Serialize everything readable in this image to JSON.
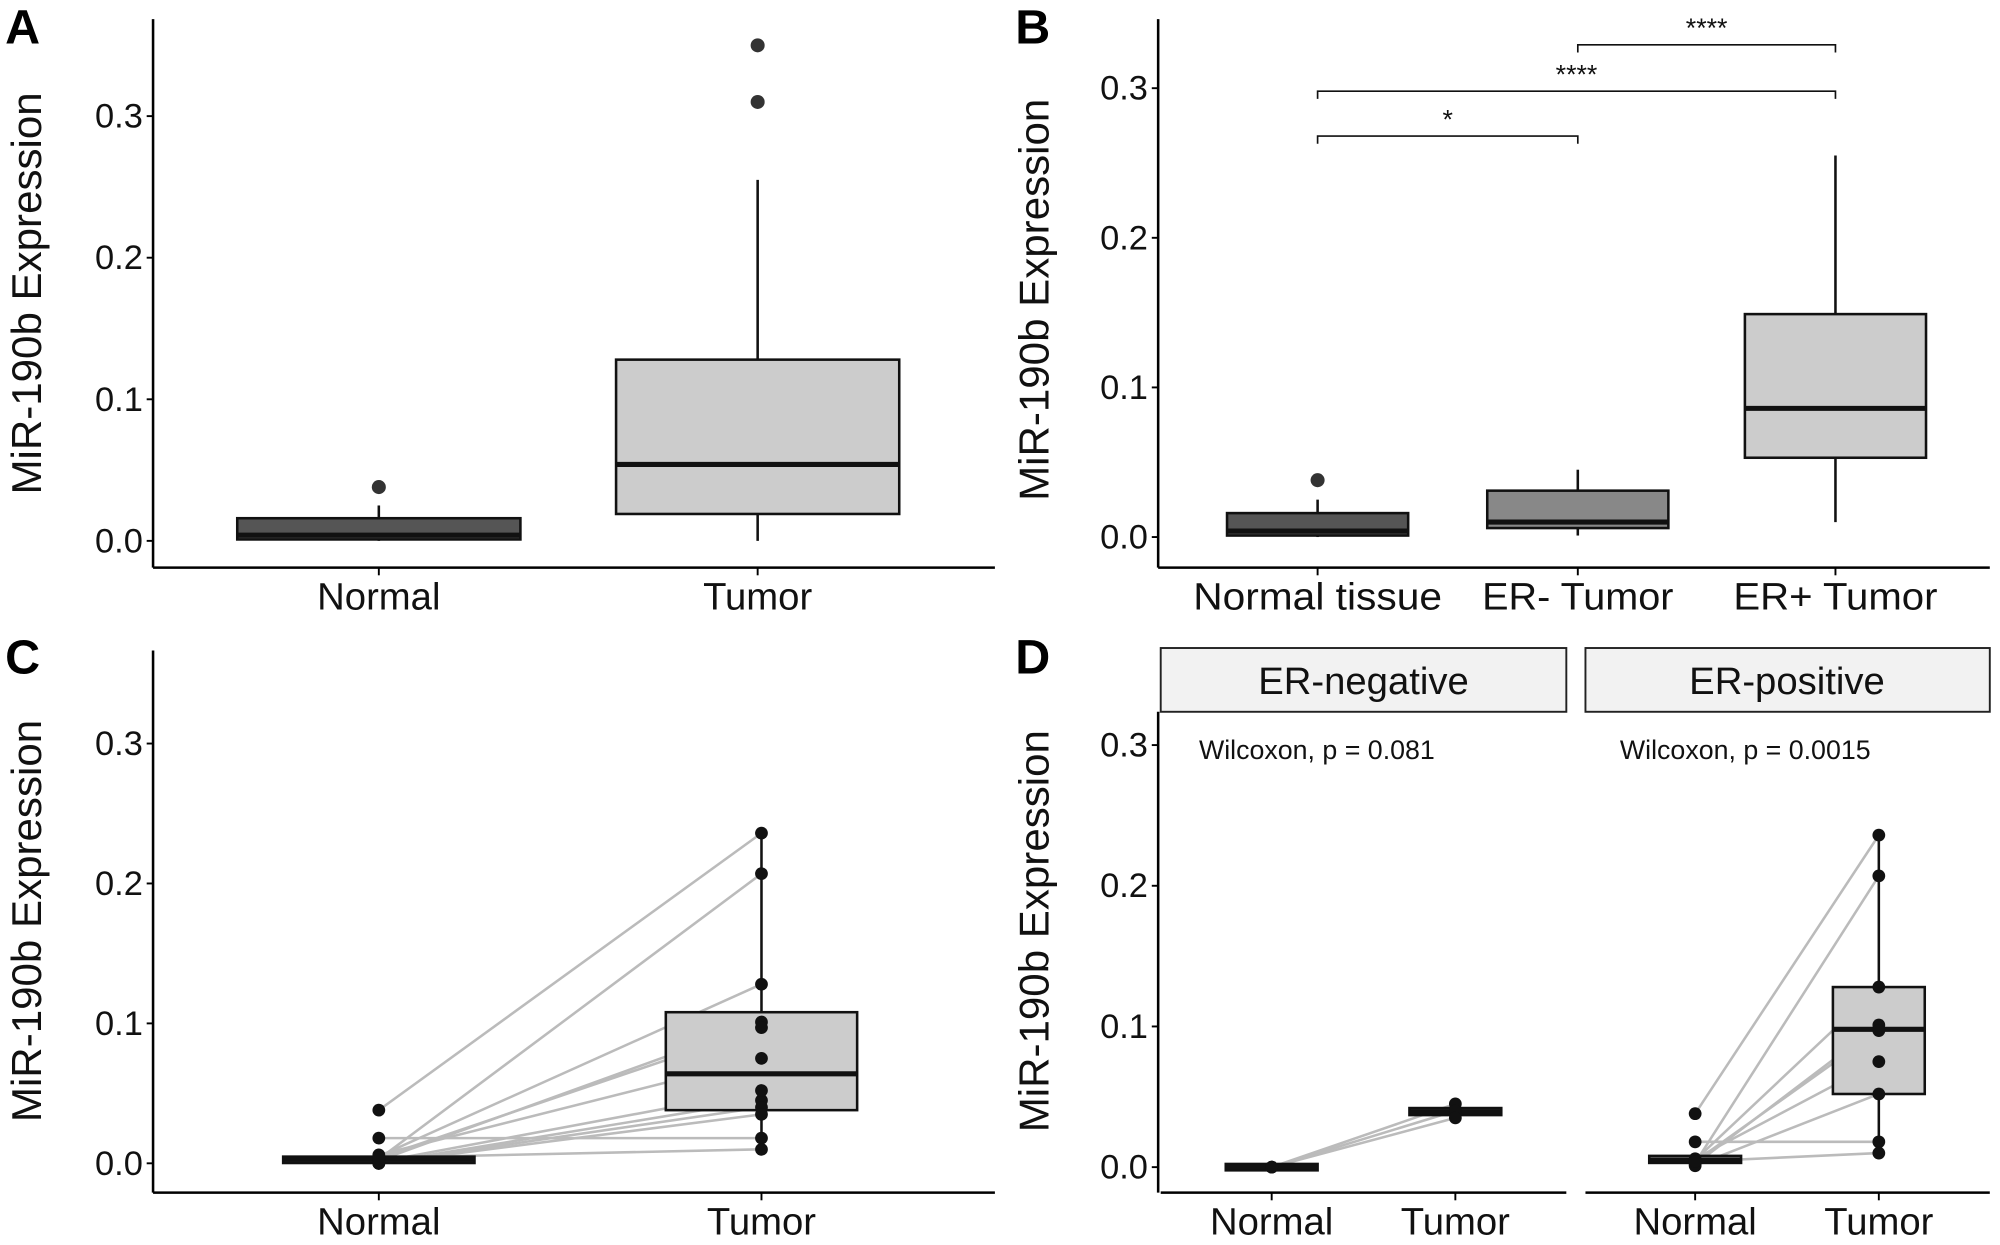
{
  "chart_data": [
    {
      "panel": "A",
      "type": "boxplot",
      "ylabel": "MiR-190b Expression",
      "yticks": [
        "0.0",
        "0.1",
        "0.2",
        "0.3"
      ],
      "ylim": [
        -0.02,
        0.37
      ],
      "categories": [
        "Normal",
        "Tumor"
      ],
      "boxes": [
        {
          "min": 0,
          "q1": 0.001,
          "median": 0.004,
          "q3": 0.016,
          "max": 0.025,
          "outliers": [
            0.038
          ],
          "fill": "#555555"
        },
        {
          "min": 0,
          "q1": 0.019,
          "median": 0.054,
          "q3": 0.128,
          "max": 0.255,
          "outliers": [
            0.31,
            0.35
          ],
          "fill": "#cccccc"
        }
      ]
    },
    {
      "panel": "B",
      "type": "boxplot",
      "ylabel": "MiR-190b Expression",
      "yticks": [
        "0.0",
        "0.1",
        "0.2",
        "0.3"
      ],
      "ylim": [
        -0.02,
        0.34
      ],
      "categories": [
        "Normal tissue",
        "ER- Tumor",
        "ER+ Tumor"
      ],
      "boxes": [
        {
          "min": 0,
          "q1": 0.001,
          "median": 0.004,
          "q3": 0.016,
          "max": 0.025,
          "outliers": [
            0.038
          ],
          "fill": "#555555"
        },
        {
          "min": 0.001,
          "q1": 0.006,
          "median": 0.01,
          "q3": 0.031,
          "max": 0.045,
          "outliers": [],
          "fill": "#888888"
        },
        {
          "min": 0.01,
          "q1": 0.053,
          "median": 0.086,
          "q3": 0.149,
          "max": 0.255,
          "outliers": [],
          "fill": "#cccccc"
        }
      ],
      "significance": [
        {
          "from": 0,
          "to": 1,
          "y": 0.268,
          "label": "*"
        },
        {
          "from": 0,
          "to": 2,
          "y": 0.298,
          "label": "****"
        },
        {
          "from": 1,
          "to": 2,
          "y": 0.329,
          "label": "****"
        }
      ]
    },
    {
      "panel": "C",
      "type": "paired-boxplot",
      "ylabel": "MiR-190b Expression",
      "yticks": [
        "0.0",
        "0.1",
        "0.2",
        "0.3"
      ],
      "ylim": [
        -0.02,
        0.37
      ],
      "categories": [
        "Normal",
        "Tumor"
      ],
      "boxes": [
        {
          "min": 0,
          "q1": 0.001,
          "median": 0.003,
          "q3": 0.004,
          "max": 0.005,
          "fill": "#222222"
        },
        {
          "min": 0.01,
          "q1": 0.038,
          "median": 0.064,
          "q3": 0.108,
          "max": 0.236,
          "fill": "#cccccc"
        }
      ],
      "pairs": [
        [
          0,
          0.045
        ],
        [
          0,
          0.04
        ],
        [
          0,
          0.035
        ],
        [
          0.038,
          0.236
        ],
        [
          0.003,
          0.207
        ],
        [
          0.005,
          0.128
        ],
        [
          0.002,
          0.101
        ],
        [
          0.004,
          0.097
        ],
        [
          0.006,
          0.075
        ],
        [
          0.001,
          0.052
        ],
        [
          0.018,
          0.018
        ],
        [
          0.004,
          0.01
        ]
      ]
    },
    {
      "panel": "D",
      "type": "paired-boxplot-faceted",
      "ylabel": "MiR-190b Expression",
      "yticks": [
        "0.0",
        "0.1",
        "0.2",
        "0.3"
      ],
      "ylim": [
        -0.02,
        0.33
      ],
      "facets": [
        {
          "strip": "ER-negative",
          "annotation": "Wilcoxon, p = 0.081",
          "categories": [
            "Normal",
            "Tumor"
          ],
          "boxes": [
            {
              "min": 0,
              "q1": 0,
              "median": 0,
              "q3": 0,
              "max": 0,
              "fill": "#222222"
            },
            {
              "min": 0.035,
              "q1": 0.037,
              "median": 0.039,
              "q3": 0.042,
              "max": 0.045,
              "fill": "#222222"
            }
          ],
          "pairs": [
            [
              0,
              0.045
            ],
            [
              0,
              0.04
            ],
            [
              0,
              0.035
            ]
          ]
        },
        {
          "strip": "ER-positive",
          "annotation": "Wilcoxon, p = 0.0015",
          "categories": [
            "Normal",
            "Tumor"
          ],
          "boxes": [
            {
              "min": 0,
              "q1": 0.003,
              "median": 0.005,
              "q3": 0.008,
              "max": 0.009,
              "fill": "#cccccc"
            },
            {
              "min": 0.01,
              "q1": 0.052,
              "median": 0.098,
              "q3": 0.128,
              "max": 0.236,
              "fill": "#cccccc"
            }
          ],
          "pairs": [
            [
              0.038,
              0.236
            ],
            [
              0.003,
              0.207
            ],
            [
              0.005,
              0.128
            ],
            [
              0.002,
              0.101
            ],
            [
              0.004,
              0.097
            ],
            [
              0.006,
              0.075
            ],
            [
              0.001,
              0.052
            ],
            [
              0.018,
              0.018
            ],
            [
              0.004,
              0.01
            ]
          ]
        }
      ]
    }
  ],
  "colors": {
    "points": "#111111",
    "pair_lines": "#bbbbbb",
    "strip_bg": "#f2f2f2"
  }
}
